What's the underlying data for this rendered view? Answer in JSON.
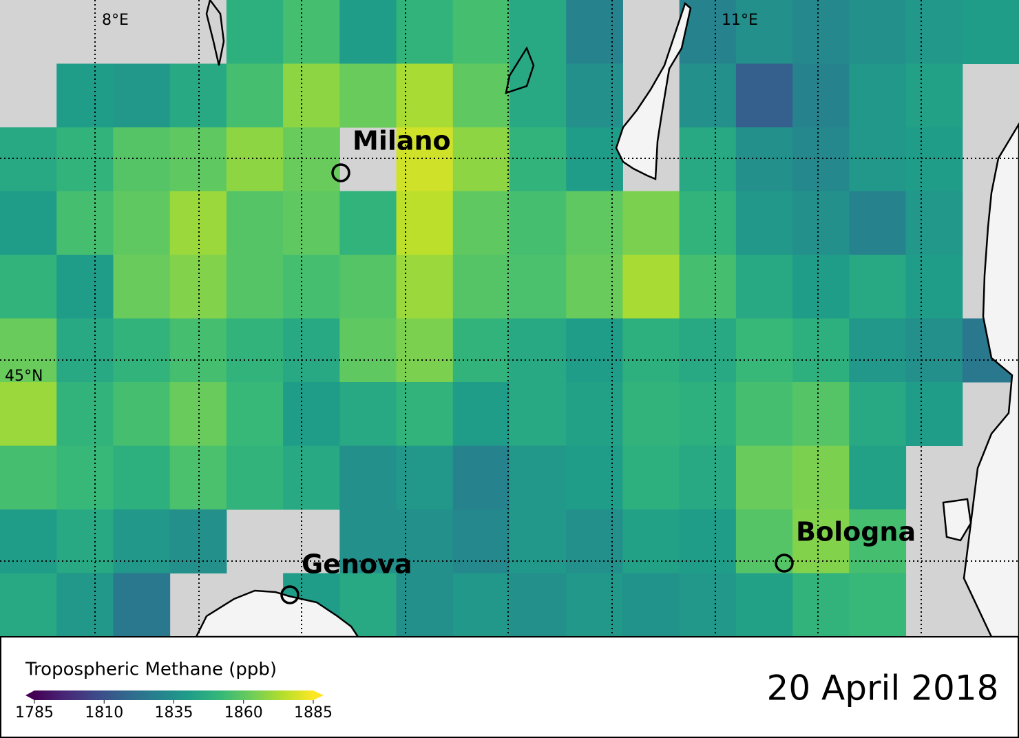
{
  "map": {
    "lon_labels": [
      "8°E",
      "11°E"
    ],
    "lat_labels": [
      "45°N"
    ],
    "cities": [
      "Milano",
      "Genova",
      "Bologna"
    ],
    "pixels": [
      [
        null,
        null,
        null,
        null,
        1848,
        1855,
        1840,
        1850,
        1855,
        1845,
        1830,
        null,
        1830,
        1835,
        1832,
        1835,
        1838,
        1840
      ],
      [
        null,
        1840,
        1838,
        1845,
        1855,
        1868,
        1862,
        1872,
        1860,
        1845,
        1835,
        null,
        1835,
        1815,
        1830,
        1838,
        1842,
        null
      ],
      [
        1845,
        1850,
        1858,
        1860,
        1868,
        1862,
        null,
        1878,
        1868,
        1850,
        1840,
        null,
        1845,
        1835,
        1832,
        1838,
        1840,
        null
      ],
      [
        1840,
        1855,
        1860,
        1870,
        1858,
        1860,
        1850,
        1875,
        1860,
        1855,
        1860,
        1865,
        1850,
        1838,
        1835,
        1830,
        1838,
        null
      ],
      [
        1850,
        1840,
        1862,
        1866,
        1858,
        1855,
        1858,
        1870,
        1858,
        1856,
        1862,
        1872,
        1855,
        1845,
        1840,
        1845,
        1840,
        null
      ],
      [
        1862,
        1845,
        1850,
        1855,
        1850,
        1845,
        1860,
        1865,
        1850,
        1845,
        1840,
        1848,
        1845,
        1852,
        1848,
        1838,
        1835,
        1825
      ],
      [
        1870,
        1850,
        1855,
        1862,
        1852,
        1840,
        1845,
        1850,
        1840,
        1845,
        1842,
        1850,
        1848,
        1855,
        1858,
        1845,
        1840,
        null
      ],
      [
        1855,
        1852,
        1848,
        1856,
        1850,
        1845,
        1835,
        1838,
        1830,
        1838,
        1840,
        1848,
        1845,
        1862,
        1865,
        1842,
        null,
        null
      ],
      [
        1840,
        1845,
        1838,
        1835,
        null,
        null,
        1835,
        1835,
        1832,
        1838,
        1835,
        1842,
        1840,
        1858,
        1866,
        1855,
        null,
        null
      ],
      [
        1845,
        1838,
        1825,
        null,
        null,
        1840,
        1845,
        1835,
        1838,
        1835,
        1838,
        1836,
        1838,
        1842,
        1850,
        1852,
        null,
        null
      ]
    ]
  },
  "colorbar": {
    "title": "Tropospheric Methane (ppb)",
    "lim": [
      1785,
      1885
    ],
    "ticks": [
      1785,
      1810,
      1835,
      1860,
      1885
    ]
  },
  "date": "20 April 2018"
}
